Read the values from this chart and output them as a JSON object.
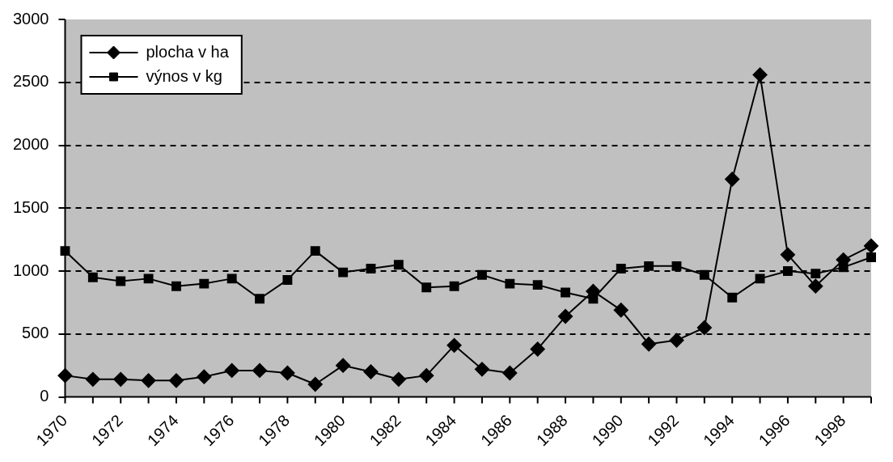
{
  "chart_data": {
    "type": "line",
    "categories": [
      "1970",
      null,
      "1972",
      null,
      "1974",
      null,
      "1976",
      null,
      "1978",
      null,
      "1980",
      null,
      "1982",
      null,
      "1984",
      null,
      "1986",
      null,
      "1988",
      null,
      "1990",
      null,
      "1992",
      null,
      "1994",
      null,
      "1996",
      null,
      "1998",
      null
    ],
    "series": [
      {
        "name": "plocha v ha",
        "color": "#000000",
        "marker": "diamond",
        "values": [
          170,
          140,
          140,
          130,
          130,
          160,
          210,
          210,
          190,
          100,
          250,
          200,
          140,
          170,
          410,
          220,
          190,
          380,
          640,
          840,
          690,
          420,
          450,
          550,
          1730,
          2560,
          1130,
          880,
          1090,
          1200
        ]
      },
      {
        "name": "výnos v kg",
        "color": "#000000",
        "marker": "square",
        "values": [
          1160,
          950,
          920,
          940,
          880,
          900,
          940,
          780,
          930,
          1160,
          990,
          1020,
          1050,
          870,
          880,
          970,
          900,
          890,
          830,
          780,
          1020,
          1040,
          1040,
          970,
          790,
          940,
          1000,
          980,
          1030,
          1110
        ]
      }
    ],
    "ylim": [
      0,
      3000
    ],
    "yticks": [
      0,
      500,
      1000,
      1500,
      2000,
      2500,
      3000
    ],
    "grid": "y",
    "legend": "top left"
  }
}
